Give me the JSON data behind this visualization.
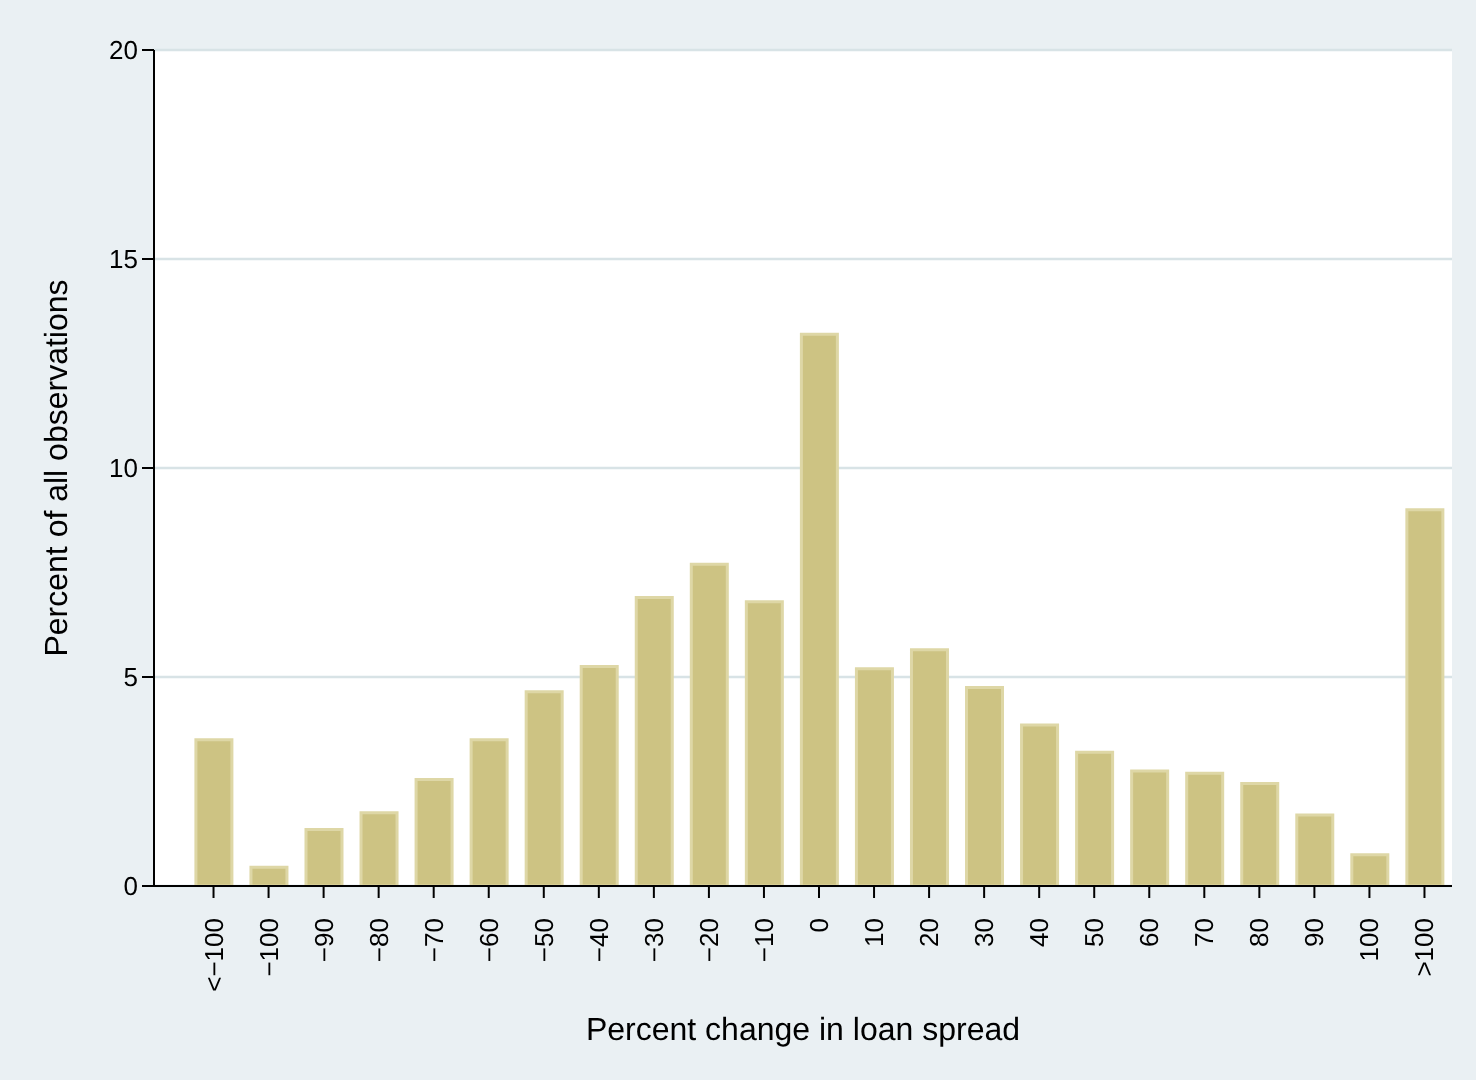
{
  "chart_data": {
    "type": "bar",
    "xlabel": "Percent change in loan spread",
    "ylabel": "Percent of all observations",
    "categories": [
      "<−100",
      "−100",
      "−90",
      "−80",
      "−70",
      "−60",
      "−50",
      "−40",
      "−30",
      "−20",
      "−10",
      "0",
      "10",
      "20",
      "30",
      "40",
      "50",
      "60",
      "70",
      "80",
      "90",
      "100",
      ">100"
    ],
    "values": [
      3.5,
      0.45,
      1.35,
      1.75,
      2.55,
      3.5,
      4.65,
      5.25,
      6.9,
      7.7,
      6.8,
      13.2,
      5.2,
      5.65,
      4.75,
      3.85,
      3.2,
      2.75,
      2.7,
      2.45,
      1.7,
      0.75,
      9.0
    ],
    "color": "#cdc383",
    "ylim": [
      0,
      20
    ],
    "yticks": [
      0,
      5,
      10,
      15,
      20
    ],
    "grid": "y"
  }
}
